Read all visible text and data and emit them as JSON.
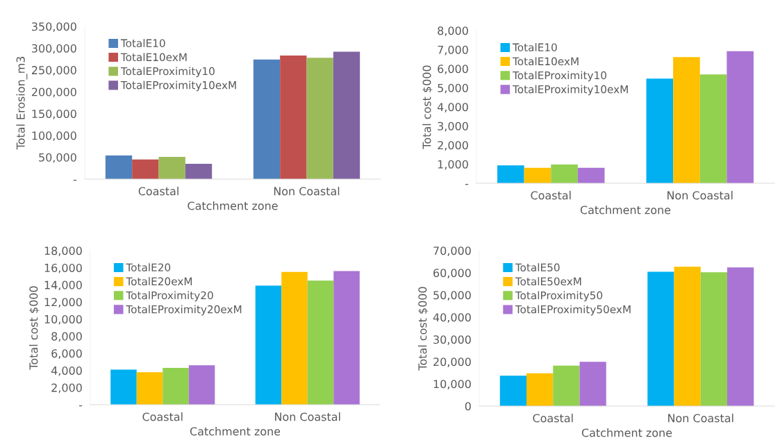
{
  "chart_data": [
    {
      "type": "bar",
      "xlabel": "Catchment zone",
      "ylabel": "Total Erosion_m3",
      "categories": [
        "Coastal",
        "Non Coastal"
      ],
      "ylim": [
        0,
        350000
      ],
      "yticks": [
        {
          "value": 0,
          "label": "-"
        },
        {
          "value": 50000,
          "label": "50,000"
        },
        {
          "value": 100000,
          "label": "100,000"
        },
        {
          "value": 150000,
          "label": "150,000"
        },
        {
          "value": 200000,
          "label": "200,000"
        },
        {
          "value": 250000,
          "label": "250,000"
        },
        {
          "value": 300000,
          "label": "300,000"
        },
        {
          "value": 350000,
          "label": "350,000"
        }
      ],
      "grid": false,
      "legend": "top left",
      "series": [
        {
          "name": "TotalE10",
          "color": "#4f81bd",
          "values": [
            54000,
            274000
          ]
        },
        {
          "name": "TotalE10exM",
          "color": "#c0504d",
          "values": [
            45000,
            283000
          ]
        },
        {
          "name": "TotalEProximity10",
          "color": "#9bbb59",
          "values": [
            51000,
            278000
          ]
        },
        {
          "name": "TotalEProximity10exM",
          "color": "#8064a2",
          "values": [
            35000,
            292000
          ]
        }
      ]
    },
    {
      "type": "bar",
      "xlabel": "Catchment zone",
      "ylabel": "Total cost $000",
      "categories": [
        "Coastal",
        "Non Coastal"
      ],
      "ylim": [
        0,
        8000
      ],
      "yticks": [
        {
          "value": 0,
          "label": "-"
        },
        {
          "value": 1000,
          "label": "1,000"
        },
        {
          "value": 2000,
          "label": "2,000"
        },
        {
          "value": 3000,
          "label": "3,000"
        },
        {
          "value": 4000,
          "label": "4,000"
        },
        {
          "value": 5000,
          "label": "5,000"
        },
        {
          "value": 6000,
          "label": "6,000"
        },
        {
          "value": 7000,
          "label": "7,000"
        },
        {
          "value": 8000,
          "label": "8,000"
        }
      ],
      "grid": false,
      "legend": "top left",
      "series": [
        {
          "name": "TotalE10",
          "color": "#00b0f0",
          "values": [
            940,
            5480
          ]
        },
        {
          "name": "TotalE10exM",
          "color": "#ffc000",
          "values": [
            810,
            6610
          ]
        },
        {
          "name": "TotalEProximity10",
          "color": "#92d050",
          "values": [
            980,
            5700
          ]
        },
        {
          "name": "TotalEProximity10exM",
          "color": "#a974d4",
          "values": [
            810,
            6920
          ]
        }
      ]
    },
    {
      "type": "bar",
      "xlabel": "Catchment zone",
      "ylabel": "Total cost $000",
      "categories": [
        "Coastal",
        "Non Coastal"
      ],
      "ylim": [
        0,
        18000
      ],
      "yticks": [
        {
          "value": 0,
          "label": "-"
        },
        {
          "value": 2000,
          "label": "2,000"
        },
        {
          "value": 4000,
          "label": "4,000"
        },
        {
          "value": 6000,
          "label": "6,000"
        },
        {
          "value": 8000,
          "label": "8,000"
        },
        {
          "value": 10000,
          "label": "10,000"
        },
        {
          "value": 12000,
          "label": "12,000"
        },
        {
          "value": 14000,
          "label": "14,000"
        },
        {
          "value": 16000,
          "label": "16,000"
        },
        {
          "value": 18000,
          "label": "18,000"
        }
      ],
      "grid": false,
      "legend": "top left",
      "series": [
        {
          "name": "TotalE20",
          "color": "#00b0f0",
          "values": [
            4100,
            13900
          ]
        },
        {
          "name": "TotalE20exM",
          "color": "#ffc000",
          "values": [
            3800,
            15500
          ]
        },
        {
          "name": "TotalProximity20",
          "color": "#92d050",
          "values": [
            4300,
            14500
          ]
        },
        {
          "name": "TotalEProximity20exM",
          "color": "#a974d4",
          "values": [
            4600,
            15600
          ]
        }
      ]
    },
    {
      "type": "bar",
      "xlabel": "Catchment zone",
      "ylabel": "Total cost $000",
      "categories": [
        "Coastal",
        "Non Coastal"
      ],
      "ylim": [
        0,
        70000
      ],
      "yticks": [
        0,
        {
          "value": 10000,
          "label": "10,000"
        },
        {
          "value": 20000,
          "label": "20,000"
        },
        {
          "value": 30000,
          "label": "30,000"
        },
        {
          "value": 40000,
          "label": "40,000"
        },
        {
          "value": 50000,
          "label": "50,000"
        },
        {
          "value": 60000,
          "label": "60,000"
        },
        {
          "value": 70000,
          "label": "70,000"
        }
      ],
      "grid": false,
      "legend": "top left",
      "series": [
        {
          "name": "TotalE50",
          "color": "#00b0f0",
          "values": [
            13700,
            60500
          ]
        },
        {
          "name": "TotalE50exM",
          "color": "#ffc000",
          "values": [
            14800,
            62700
          ]
        },
        {
          "name": "TotalProximity50",
          "color": "#92d050",
          "values": [
            18200,
            60200
          ]
        },
        {
          "name": "TotalEProximity50exM",
          "color": "#a974d4",
          "values": [
            19900,
            62400
          ]
        }
      ]
    }
  ]
}
